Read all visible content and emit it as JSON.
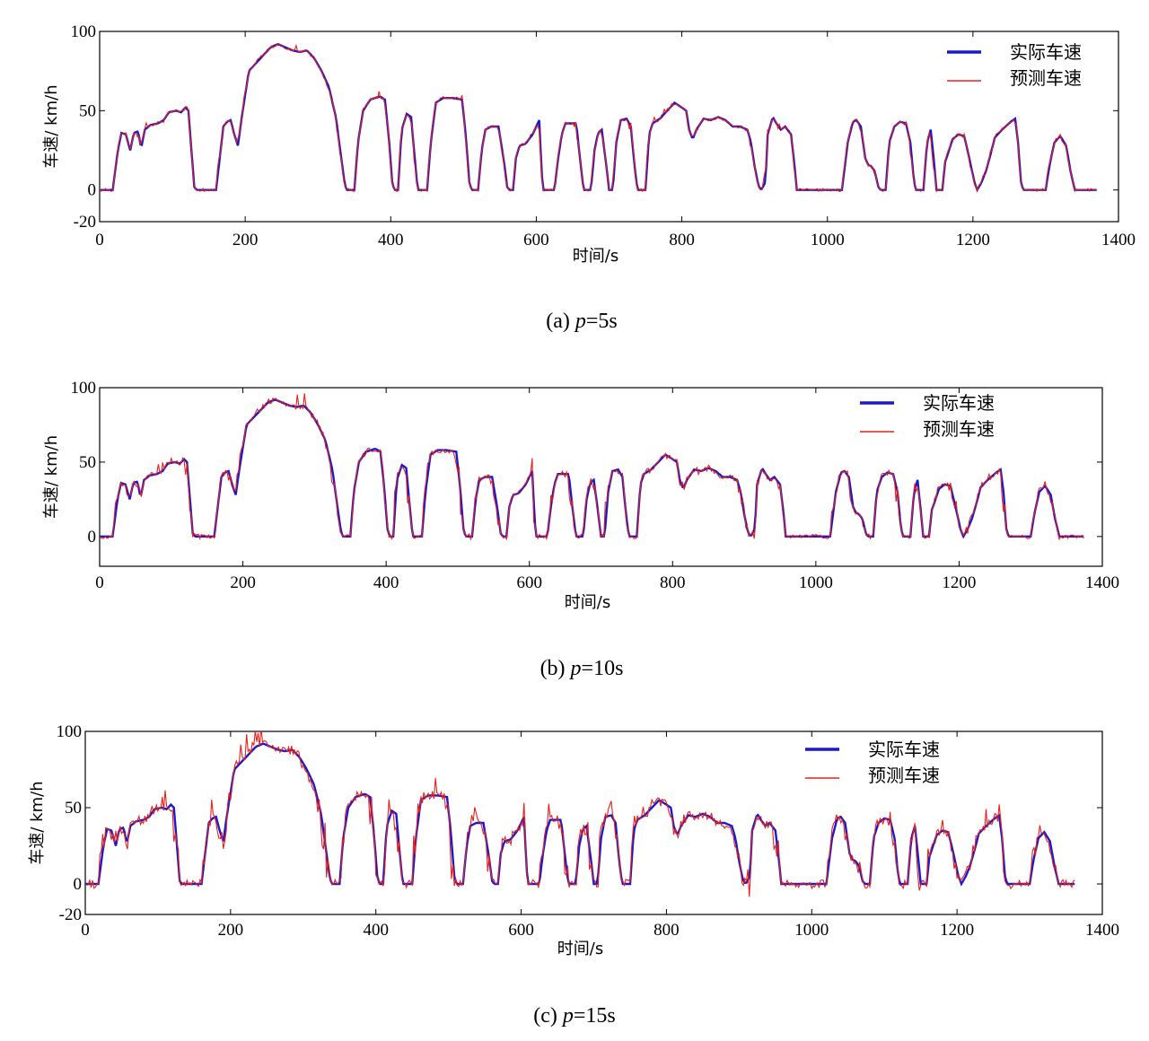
{
  "chart_data": [
    {
      "type": "line",
      "caption": {
        "prefix": "(a) ",
        "var": "p",
        "suffix": "=5s"
      },
      "xlabel": "时间/s",
      "ylabel": "车速/ km/h",
      "xlim": [
        0,
        1400
      ],
      "ylim": [
        -20,
        100
      ],
      "xticks": [
        "0",
        "200",
        "400",
        "600",
        "800",
        "1000",
        "1200",
        "1400"
      ],
      "yticks": [
        "-20",
        "0",
        "50",
        "100"
      ],
      "legend_position": "top-right",
      "series": [
        {
          "name": "实际车速",
          "color": "#1a1acc"
        },
        {
          "name": "预测车速",
          "color": "#e8201a"
        }
      ],
      "x_end": 1370,
      "noise": 3
    },
    {
      "type": "line",
      "caption": {
        "prefix": "(b) ",
        "var": "p",
        "suffix": "=10s"
      },
      "xlabel": "时间/s",
      "ylabel": "车速/ km/h",
      "xlim": [
        0,
        1400
      ],
      "ylim": [
        -20,
        100
      ],
      "xticks": [
        "0",
        "200",
        "400",
        "600",
        "800",
        "1000",
        "1200",
        "1400"
      ],
      "yticks": [
        "0",
        "50",
        "100"
      ],
      "legend_position": "top-right",
      "series": [
        {
          "name": "实际车速",
          "color": "#1a1acc"
        },
        {
          "name": "预测车速",
          "color": "#e8201a"
        }
      ],
      "x_end": 1375,
      "noise": 6
    },
    {
      "type": "line",
      "caption": {
        "prefix": "(c) ",
        "var": "p",
        "suffix": "=15s"
      },
      "xlabel": "时间/s",
      "ylabel": "车速/ km/h",
      "xlim": [
        0,
        1400
      ],
      "ylim": [
        -20,
        100
      ],
      "xticks": [
        "0",
        "200",
        "400",
        "600",
        "800",
        "1000",
        "1200",
        "1400"
      ],
      "yticks": [
        "-20",
        "0",
        "50",
        "100"
      ],
      "legend_position": "top-right",
      "series": [
        {
          "name": "实际车速",
          "color": "#1a1acc"
        },
        {
          "name": "预测车速",
          "color": "#e8201a"
        }
      ],
      "x_end": 1362,
      "noise": 10
    }
  ],
  "speed_profile": [
    [
      0,
      0
    ],
    [
      18,
      0
    ],
    [
      25,
      25
    ],
    [
      30,
      36
    ],
    [
      36,
      35
    ],
    [
      42,
      25
    ],
    [
      47,
      36
    ],
    [
      53,
      37
    ],
    [
      57,
      26
    ],
    [
      62,
      38
    ],
    [
      70,
      41
    ],
    [
      80,
      42
    ],
    [
      88,
      44
    ],
    [
      95,
      49
    ],
    [
      105,
      50
    ],
    [
      112,
      49
    ],
    [
      118,
      52
    ],
    [
      122,
      50
    ],
    [
      127,
      20
    ],
    [
      130,
      2
    ],
    [
      133,
      0
    ],
    [
      160,
      0
    ],
    [
      165,
      20
    ],
    [
      170,
      40
    ],
    [
      175,
      43
    ],
    [
      180,
      44
    ],
    [
      185,
      35
    ],
    [
      190,
      28
    ],
    [
      195,
      45
    ],
    [
      200,
      60
    ],
    [
      205,
      75
    ],
    [
      215,
      80
    ],
    [
      225,
      85
    ],
    [
      235,
      90
    ],
    [
      245,
      92
    ],
    [
      255,
      90
    ],
    [
      265,
      88
    ],
    [
      275,
      87
    ],
    [
      285,
      88
    ],
    [
      295,
      83
    ],
    [
      305,
      75
    ],
    [
      315,
      65
    ],
    [
      325,
      45
    ],
    [
      332,
      20
    ],
    [
      337,
      3
    ],
    [
      340,
      0
    ],
    [
      350,
      0
    ],
    [
      355,
      30
    ],
    [
      362,
      50
    ],
    [
      372,
      57
    ],
    [
      385,
      59
    ],
    [
      392,
      57
    ],
    [
      397,
      35
    ],
    [
      402,
      5
    ],
    [
      405,
      0
    ],
    [
      410,
      0
    ],
    [
      415,
      38
    ],
    [
      422,
      48
    ],
    [
      428,
      46
    ],
    [
      433,
      20
    ],
    [
      437,
      0
    ],
    [
      450,
      0
    ],
    [
      455,
      30
    ],
    [
      462,
      55
    ],
    [
      472,
      58
    ],
    [
      485,
      58
    ],
    [
      498,
      57
    ],
    [
      503,
      35
    ],
    [
      508,
      5
    ],
    [
      511,
      0
    ],
    [
      520,
      0
    ],
    [
      525,
      25
    ],
    [
      530,
      38
    ],
    [
      538,
      40
    ],
    [
      548,
      40
    ],
    [
      555,
      20
    ],
    [
      560,
      2
    ],
    [
      563,
      0
    ],
    [
      568,
      0
    ],
    [
      572,
      20
    ],
    [
      577,
      28
    ],
    [
      585,
      29
    ],
    [
      595,
      35
    ],
    [
      600,
      40
    ],
    [
      604,
      44
    ],
    [
      607,
      15
    ],
    [
      609,
      0
    ],
    [
      625,
      0
    ],
    [
      630,
      20
    ],
    [
      635,
      35
    ],
    [
      640,
      42
    ],
    [
      655,
      42
    ],
    [
      660,
      20
    ],
    [
      665,
      0
    ],
    [
      675,
      0
    ],
    [
      680,
      25
    ],
    [
      685,
      36
    ],
    [
      690,
      38
    ],
    [
      695,
      20
    ],
    [
      700,
      0
    ],
    [
      705,
      0
    ],
    [
      710,
      30
    ],
    [
      716,
      44
    ],
    [
      724,
      45
    ],
    [
      730,
      40
    ],
    [
      735,
      15
    ],
    [
      739,
      0
    ],
    [
      750,
      0
    ],
    [
      755,
      35
    ],
    [
      760,
      42
    ],
    [
      770,
      45
    ],
    [
      780,
      50
    ],
    [
      790,
      55
    ],
    [
      800,
      52
    ],
    [
      806,
      50
    ],
    [
      810,
      38
    ],
    [
      815,
      32
    ],
    [
      820,
      38
    ],
    [
      830,
      45
    ],
    [
      840,
      44
    ],
    [
      850,
      46
    ],
    [
      860,
      44
    ],
    [
      870,
      40
    ],
    [
      880,
      40
    ],
    [
      890,
      38
    ],
    [
      895,
      30
    ],
    [
      900,
      15
    ],
    [
      905,
      3
    ],
    [
      909,
      0
    ],
    [
      915,
      5
    ],
    [
      918,
      35
    ],
    [
      925,
      46
    ],
    [
      930,
      42
    ],
    [
      936,
      38
    ],
    [
      942,
      40
    ],
    [
      950,
      35
    ],
    [
      955,
      15
    ],
    [
      958,
      0
    ],
    [
      975,
      0
    ],
    [
      1000,
      0
    ],
    [
      1020,
      0
    ],
    [
      1028,
      30
    ],
    [
      1035,
      43
    ],
    [
      1040,
      44
    ],
    [
      1046,
      40
    ],
    [
      1052,
      20
    ],
    [
      1056,
      16
    ],
    [
      1060,
      15
    ],
    [
      1065,
      12
    ],
    [
      1070,
      2
    ],
    [
      1073,
      0
    ],
    [
      1080,
      0
    ],
    [
      1085,
      30
    ],
    [
      1092,
      40
    ],
    [
      1100,
      43
    ],
    [
      1108,
      42
    ],
    [
      1114,
      30
    ],
    [
      1119,
      5
    ],
    [
      1122,
      0
    ],
    [
      1132,
      0
    ],
    [
      1137,
      30
    ],
    [
      1142,
      38
    ],
    [
      1146,
      20
    ],
    [
      1150,
      0
    ],
    [
      1158,
      0
    ],
    [
      1162,
      18
    ],
    [
      1165,
      22
    ],
    [
      1172,
      32
    ],
    [
      1180,
      35
    ],
    [
      1188,
      34
    ],
    [
      1195,
      20
    ],
    [
      1202,
      5
    ],
    [
      1206,
      0
    ],
    [
      1212,
      5
    ],
    [
      1218,
      12
    ],
    [
      1224,
      22
    ],
    [
      1230,
      33
    ],
    [
      1240,
      38
    ],
    [
      1252,
      43
    ],
    [
      1258,
      45
    ],
    [
      1262,
      30
    ],
    [
      1266,
      5
    ],
    [
      1269,
      0
    ],
    [
      1300,
      0
    ],
    [
      1305,
      15
    ],
    [
      1312,
      30
    ],
    [
      1320,
      34
    ],
    [
      1328,
      28
    ],
    [
      1334,
      12
    ],
    [
      1340,
      0
    ],
    [
      1375,
      0
    ]
  ]
}
